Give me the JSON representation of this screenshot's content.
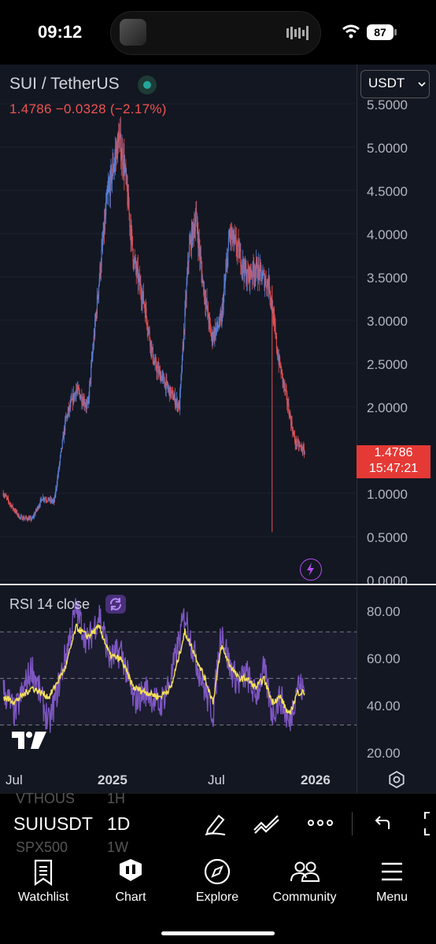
{
  "status_bar": {
    "time": "09:12",
    "battery": "87"
  },
  "header": {
    "symbol_title": "SUI / TetherUS",
    "price_line": "1.4786  −0.0328 (−2.17%)",
    "currency": "USDT"
  },
  "price_axis": {
    "ticks": [
      "5.5000",
      "5.0000",
      "4.5000",
      "4.0000",
      "3.5000",
      "3.0000",
      "2.5000",
      "2.0000",
      "1.0000",
      "0.5000",
      "0.0000"
    ],
    "last_price": "1.4786",
    "countdown": "15:47:21"
  },
  "rsi": {
    "label": "RSI 14 close",
    "ticks": [
      "80.00",
      "60.00",
      "40.00",
      "20.00"
    ]
  },
  "time_axis": {
    "labels": [
      "Jul",
      "2025",
      "Jul",
      "2026"
    ]
  },
  "toolbar": {
    "symbol": "SUIUSDT",
    "interval": "1D",
    "ghost_symbols": [
      "VTHOUS",
      "SPX500"
    ],
    "ghost_intervals": [
      "1H",
      "1W"
    ]
  },
  "nav": {
    "items": [
      {
        "label": "Watchlist",
        "icon": "watchlist-icon"
      },
      {
        "label": "Chart",
        "icon": "chart-icon"
      },
      {
        "label": "Explore",
        "icon": "compass-icon"
      },
      {
        "label": "Community",
        "icon": "people-icon"
      },
      {
        "label": "Menu",
        "icon": "hamburger-icon"
      }
    ]
  },
  "colors": {
    "up": "#5b7fd6",
    "down": "#e05050",
    "rsi_line": "#7e57c2",
    "rsi_ma": "#f5e05a",
    "price_tag": "#e53935"
  },
  "chart_data": [
    {
      "type": "line",
      "title": "SUI / TetherUS",
      "xlabel": "",
      "ylabel": "",
      "x": [
        "2024-06-10",
        "2024-06-25",
        "2024-07-10",
        "2024-08-01",
        "2024-08-20",
        "2024-09-10",
        "2024-10-01",
        "2024-10-20",
        "2024-11-10",
        "2024-12-01",
        "2024-12-15",
        "2025-01-05",
        "2025-01-15",
        "2025-02-01",
        "2025-02-20",
        "2025-03-10",
        "2025-04-05",
        "2025-04-25",
        "2025-05-12",
        "2025-05-25",
        "2025-06-05",
        "2025-06-22",
        "2025-07-10",
        "2025-07-25",
        "2025-08-10",
        "2025-08-25",
        "2025-09-10",
        "2025-10-05",
        "2025-10-20",
        "2025-11-05",
        "2025-11-20",
        "2025-12-08"
      ],
      "series": [
        {
          "values": [
            1.0,
            0.85,
            0.72,
            0.7,
            0.95,
            0.9,
            1.85,
            2.2,
            2.0,
            3.5,
            4.4,
            5.1,
            4.8,
            3.7,
            3.2,
            2.5,
            2.2,
            2.0,
            3.8,
            4.2,
            3.5,
            2.8,
            3.0,
            4.0,
            3.8,
            3.5,
            3.6,
            3.4,
            2.6,
            2.1,
            1.6,
            1.48
          ]
        }
      ],
      "ylim": [
        0,
        5.6
      ]
    },
    {
      "type": "line",
      "title": "RSI 14 close",
      "x": [
        "2024-06-10",
        "2024-07-01",
        "2024-08-01",
        "2024-09-01",
        "2024-10-01",
        "2024-10-20",
        "2024-11-10",
        "2024-12-01",
        "2024-12-20",
        "2025-01-10",
        "2025-02-01",
        "2025-02-25",
        "2025-03-20",
        "2025-04-10",
        "2025-05-05",
        "2025-05-20",
        "2025-06-10",
        "2025-06-25",
        "2025-07-10",
        "2025-07-25",
        "2025-08-10",
        "2025-08-25",
        "2025-09-10",
        "2025-09-25",
        "2025-10-10",
        "2025-10-25",
        "2025-11-10",
        "2025-11-25",
        "2025-12-08"
      ],
      "series": [
        {
          "values": [
            45,
            35,
            55,
            30,
            60,
            80,
            65,
            78,
            58,
            62,
            40,
            45,
            38,
            50,
            78,
            62,
            45,
            35,
            72,
            55,
            48,
            52,
            42,
            54,
            35,
            42,
            30,
            48,
            44
          ]
        },
        {
          "values": [
            42,
            40,
            46,
            42,
            55,
            72,
            68,
            72,
            60,
            58,
            46,
            44,
            42,
            46,
            70,
            62,
            50,
            40,
            64,
            56,
            50,
            50,
            46,
            50,
            40,
            42,
            34,
            44,
            44
          ]
        }
      ],
      "ylim": [
        15,
        90
      ]
    }
  ]
}
